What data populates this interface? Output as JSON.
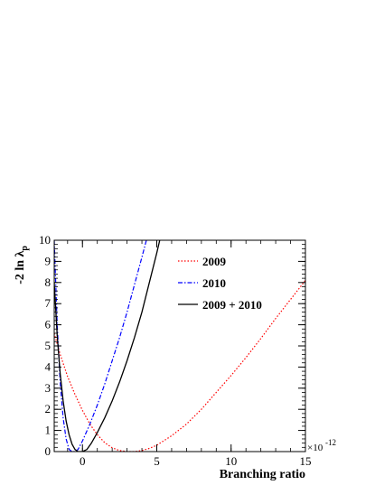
{
  "chart_data": {
    "type": "line",
    "xlabel": "Branching ratio",
    "ylabel": "-2 ln λ",
    "ylabel_sub": "p",
    "x_multiplier": "×10",
    "x_multiplier_exp": "-12",
    "xlim": [
      -1.9,
      15
    ],
    "ylim": [
      0,
      10
    ],
    "x_ticks": [
      0,
      5,
      10,
      15
    ],
    "y_ticks": [
      0,
      1,
      2,
      3,
      4,
      5,
      6,
      7,
      8,
      9,
      10
    ],
    "legend_position": "top-right",
    "series": [
      {
        "name": "2009",
        "color": "#ff0000",
        "dash": "dotted",
        "points": [
          [
            -1.9,
            5.6
          ],
          [
            -1.5,
            4.6
          ],
          [
            -1.0,
            3.55
          ],
          [
            -0.5,
            2.7
          ],
          [
            0.0,
            1.95
          ],
          [
            0.5,
            1.3
          ],
          [
            1.0,
            0.8
          ],
          [
            1.5,
            0.42
          ],
          [
            2.0,
            0.18
          ],
          [
            2.5,
            0.05
          ],
          [
            3.0,
            0.0
          ],
          [
            3.5,
            0.0
          ],
          [
            4.0,
            0.05
          ],
          [
            4.5,
            0.15
          ],
          [
            5.0,
            0.3
          ],
          [
            6.0,
            0.75
          ],
          [
            7.0,
            1.3
          ],
          [
            8.0,
            2.0
          ],
          [
            9.0,
            2.8
          ],
          [
            10.0,
            3.6
          ],
          [
            11.0,
            4.45
          ],
          [
            12.0,
            5.35
          ],
          [
            13.0,
            6.3
          ],
          [
            14.0,
            7.2
          ],
          [
            15.0,
            8.1
          ]
        ]
      },
      {
        "name": "2010",
        "color": "#0000ff",
        "dash": "dashdot",
        "points": [
          [
            -1.9,
            10.0
          ],
          [
            -1.7,
            6.0
          ],
          [
            -1.5,
            3.3
          ],
          [
            -1.3,
            1.6
          ],
          [
            -1.1,
            0.6
          ],
          [
            -0.9,
            0.1
          ],
          [
            -0.7,
            0.0
          ],
          [
            -0.5,
            0.0
          ],
          [
            -0.3,
            0.1
          ],
          [
            0.0,
            0.5
          ],
          [
            0.5,
            1.3
          ],
          [
            1.0,
            2.2
          ],
          [
            1.5,
            3.2
          ],
          [
            2.0,
            4.3
          ],
          [
            2.5,
            5.4
          ],
          [
            3.0,
            6.6
          ],
          [
            3.5,
            7.9
          ],
          [
            4.0,
            9.2
          ],
          [
            4.3,
            10.0
          ]
        ]
      },
      {
        "name": "2009 + 2010",
        "color": "#000000",
        "dash": "solid",
        "points": [
          [
            -1.9,
            8.0
          ],
          [
            -1.7,
            5.5
          ],
          [
            -1.5,
            3.7
          ],
          [
            -1.3,
            2.4
          ],
          [
            -1.1,
            1.45
          ],
          [
            -0.9,
            0.8
          ],
          [
            -0.7,
            0.35
          ],
          [
            -0.5,
            0.1
          ],
          [
            -0.3,
            0.0
          ],
          [
            0.0,
            0.0
          ],
          [
            0.3,
            0.1
          ],
          [
            0.6,
            0.4
          ],
          [
            1.0,
            0.9
          ],
          [
            1.5,
            1.6
          ],
          [
            2.0,
            2.4
          ],
          [
            2.5,
            3.3
          ],
          [
            3.0,
            4.3
          ],
          [
            3.5,
            5.4
          ],
          [
            4.0,
            6.6
          ],
          [
            4.5,
            8.0
          ],
          [
            5.0,
            9.4
          ],
          [
            5.2,
            10.0
          ]
        ]
      }
    ]
  }
}
